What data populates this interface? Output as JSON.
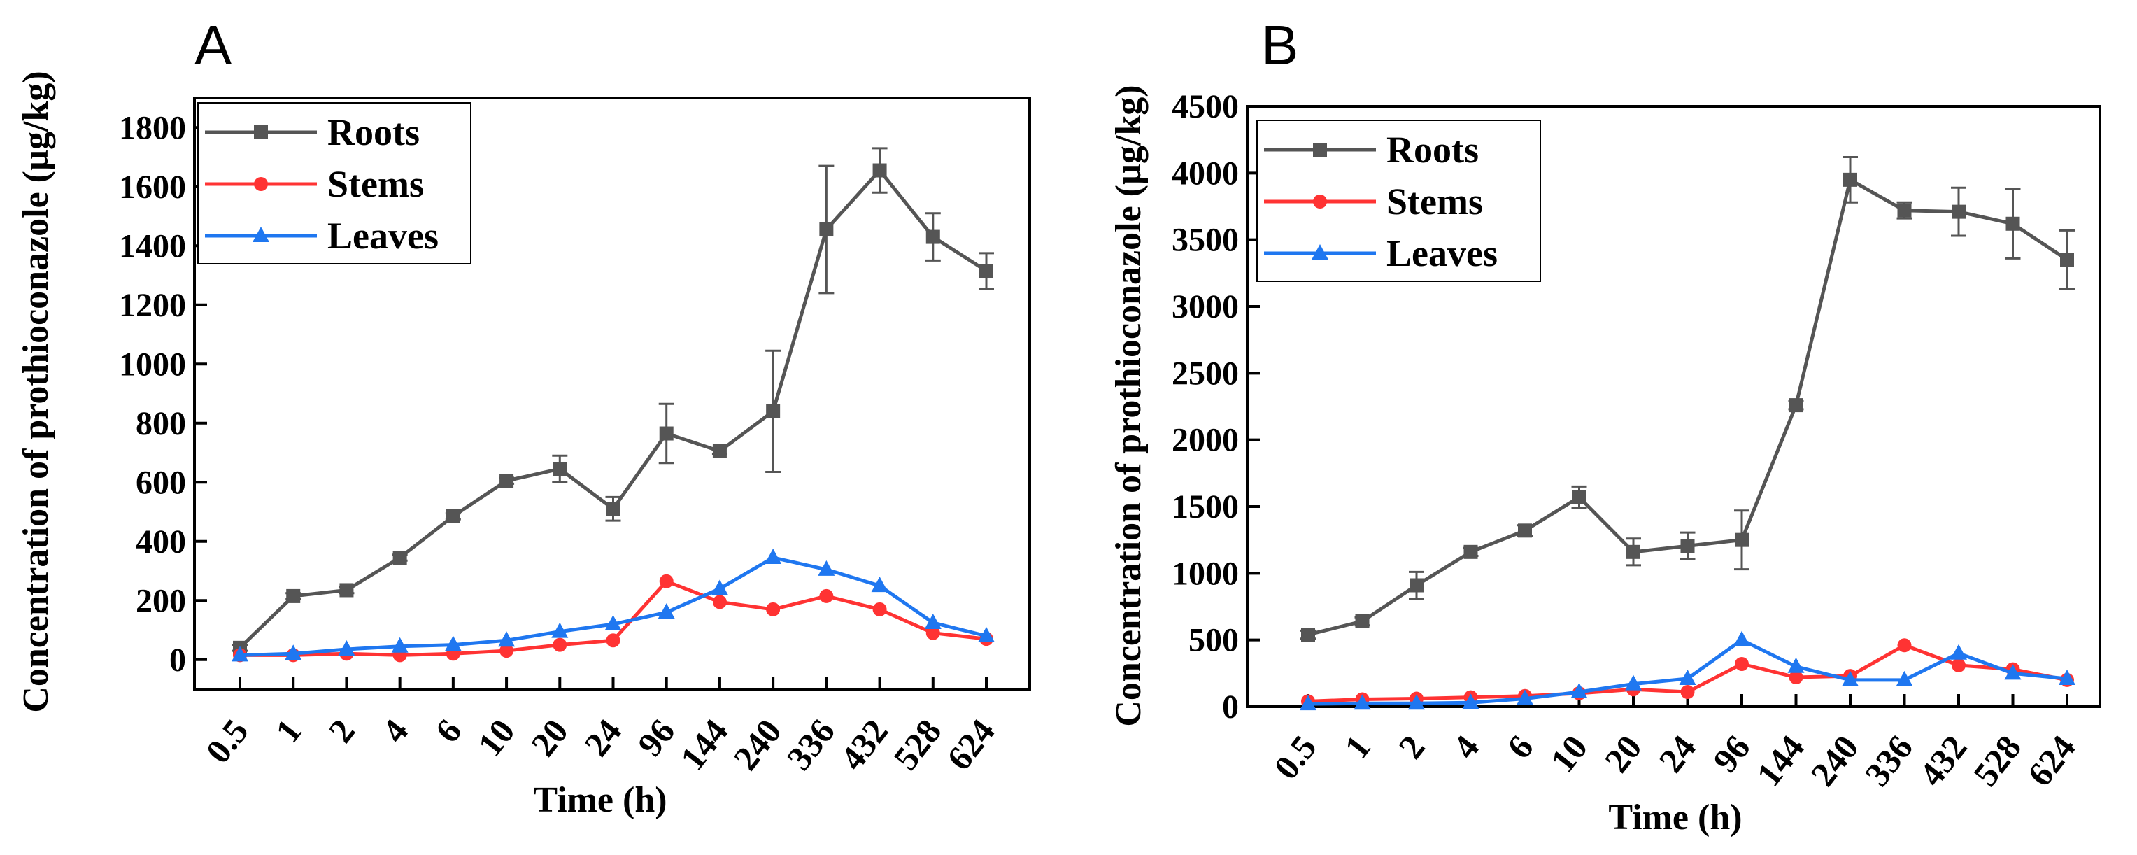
{
  "chart_data": [
    {
      "type": "line",
      "panel_label": "A",
      "categories": [
        "0.5",
        "1",
        "2",
        "4",
        "6",
        "10",
        "20",
        "24",
        "96",
        "144",
        "240",
        "336",
        "432",
        "528",
        "624"
      ],
      "xlabel": "Time (h)",
      "ylabel": "Concentration of  prothioconazole (µg/kg)",
      "ylim": [
        -100,
        1900
      ],
      "yticks": [
        0,
        200,
        400,
        600,
        800,
        1000,
        1200,
        1400,
        1600,
        1800
      ],
      "legend_position": "top-left",
      "series": [
        {
          "name": "Roots",
          "color": "#555555",
          "marker": "square",
          "values": [
            40,
            215,
            235,
            345,
            485,
            605,
            645,
            510,
            765,
            705,
            840,
            1455,
            1655,
            1430,
            1315
          ],
          "errors": [
            10,
            10,
            10,
            10,
            10,
            10,
            45,
            40,
            100,
            10,
            205,
            215,
            75,
            80,
            60
          ]
        },
        {
          "name": "Stems",
          "color": "#ff3333",
          "marker": "circle",
          "values": [
            15,
            15,
            20,
            15,
            20,
            30,
            50,
            65,
            265,
            195,
            170,
            215,
            170,
            90,
            70
          ],
          "errors": [
            0,
            0,
            0,
            0,
            0,
            0,
            0,
            0,
            0,
            0,
            0,
            0,
            0,
            0,
            0
          ]
        },
        {
          "name": "Leaves",
          "color": "#1f77f0",
          "marker": "triangle",
          "values": [
            15,
            20,
            35,
            45,
            50,
            65,
            95,
            120,
            160,
            240,
            345,
            305,
            250,
            125,
            80
          ],
          "errors": [
            0,
            0,
            0,
            0,
            0,
            0,
            0,
            0,
            0,
            0,
            0,
            0,
            0,
            0,
            0
          ]
        }
      ]
    },
    {
      "type": "line",
      "panel_label": "B",
      "categories": [
        "0.5",
        "1",
        "2",
        "4",
        "6",
        "10",
        "20",
        "24",
        "96",
        "144",
        "240",
        "336",
        "432",
        "528",
        "624"
      ],
      "xlabel": "Time (h)",
      "ylabel": "Concentration of  prothioconazole (µg/kg)",
      "ylim": [
        0,
        4500
      ],
      "yticks": [
        0,
        500,
        1000,
        1500,
        2000,
        2500,
        3000,
        3500,
        4000,
        4500
      ],
      "legend_position": "top-left",
      "series": [
        {
          "name": "Roots",
          "color": "#555555",
          "marker": "square",
          "values": [
            540,
            640,
            910,
            1160,
            1320,
            1570,
            1160,
            1205,
            1250,
            2260,
            3950,
            3720,
            3710,
            3620,
            3350
          ],
          "errors": [
            30,
            30,
            100,
            30,
            40,
            80,
            100,
            100,
            220,
            30,
            170,
            60,
            180,
            260,
            220
          ]
        },
        {
          "name": "Stems",
          "color": "#ff3333",
          "marker": "circle",
          "values": [
            40,
            55,
            60,
            70,
            80,
            100,
            130,
            110,
            320,
            220,
            230,
            460,
            310,
            280,
            200
          ],
          "errors": [
            0,
            0,
            0,
            0,
            0,
            0,
            0,
            0,
            0,
            0,
            0,
            0,
            0,
            0,
            0
          ]
        },
        {
          "name": "Leaves",
          "color": "#1f77f0",
          "marker": "triangle",
          "values": [
            20,
            25,
            25,
            30,
            60,
            110,
            170,
            210,
            500,
            300,
            200,
            200,
            400,
            250,
            210
          ],
          "errors": [
            0,
            0,
            0,
            0,
            0,
            0,
            0,
            0,
            0,
            0,
            0,
            0,
            0,
            0,
            0
          ]
        }
      ]
    }
  ]
}
